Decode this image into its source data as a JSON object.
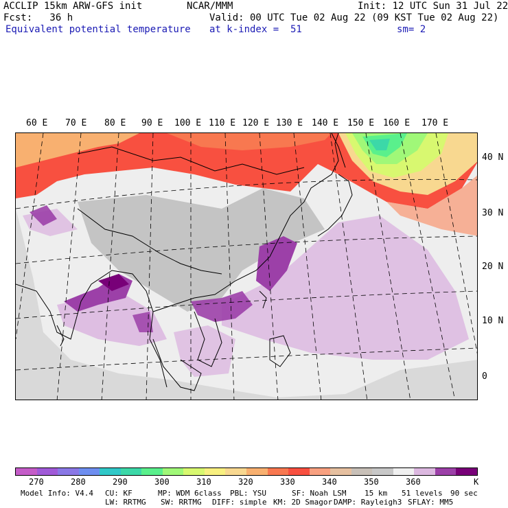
{
  "header": {
    "line1_left": "ACCLIP 15km ARW-GFS init",
    "line1_center": "NCAR/MMM",
    "line1_right": "Init: 12 UTC Sun 31 Jul 22",
    "fcst": "Fcst:   36 h",
    "valid": "Valid: 00 UTC Tue 02 Aug 22 (09 KST Tue 02 Aug 22)",
    "field": "Equivalent potential temperature",
    "level": "at k-index =  51",
    "smoothing": "sm= 2"
  },
  "map": {
    "lon_labels": [
      "60 E",
      "70 E",
      "80 E",
      "90 E",
      "100 E",
      "110 E",
      "120 E",
      "130 E",
      "140 E",
      "150 E",
      "160 E",
      "170 E"
    ],
    "lat_labels": [
      "40 N",
      "30 N",
      "20 N",
      "10 N",
      "0"
    ]
  },
  "colorbar": {
    "colors": [
      "#c45cc8",
      "#a05ad8",
      "#8a78e6",
      "#6e8ef0",
      "#30c8c8",
      "#3cd8a8",
      "#5af08c",
      "#a0f878",
      "#d8f870",
      "#f8f080",
      "#f8d890",
      "#f8b070",
      "#f87850",
      "#f85040",
      "#f8a080",
      "#e6c0a0",
      "#c8c0b8",
      "#c8c8c8",
      "#f0f0f0",
      "#dcb8e0",
      "#9c40a8",
      "#780078"
    ],
    "labels": [
      "270",
      "280",
      "290",
      "300",
      "310",
      "320",
      "330",
      "340",
      "350",
      "360"
    ],
    "unit": "K"
  },
  "model_info": {
    "line1": [
      "Model Info: V4.4",
      "CU: KF",
      "MP: WDM 6class",
      "PBL: YSU",
      "SF: Noah LSM",
      "15 km",
      "51 levels",
      "90 sec"
    ],
    "line2": [
      "LW: RRTMG",
      "SW: RRTMG",
      "DIFF: simple",
      "KM: 2D Smagor",
      "DAMP: Rayleigh3",
      "SFLAY: MM5"
    ]
  }
}
